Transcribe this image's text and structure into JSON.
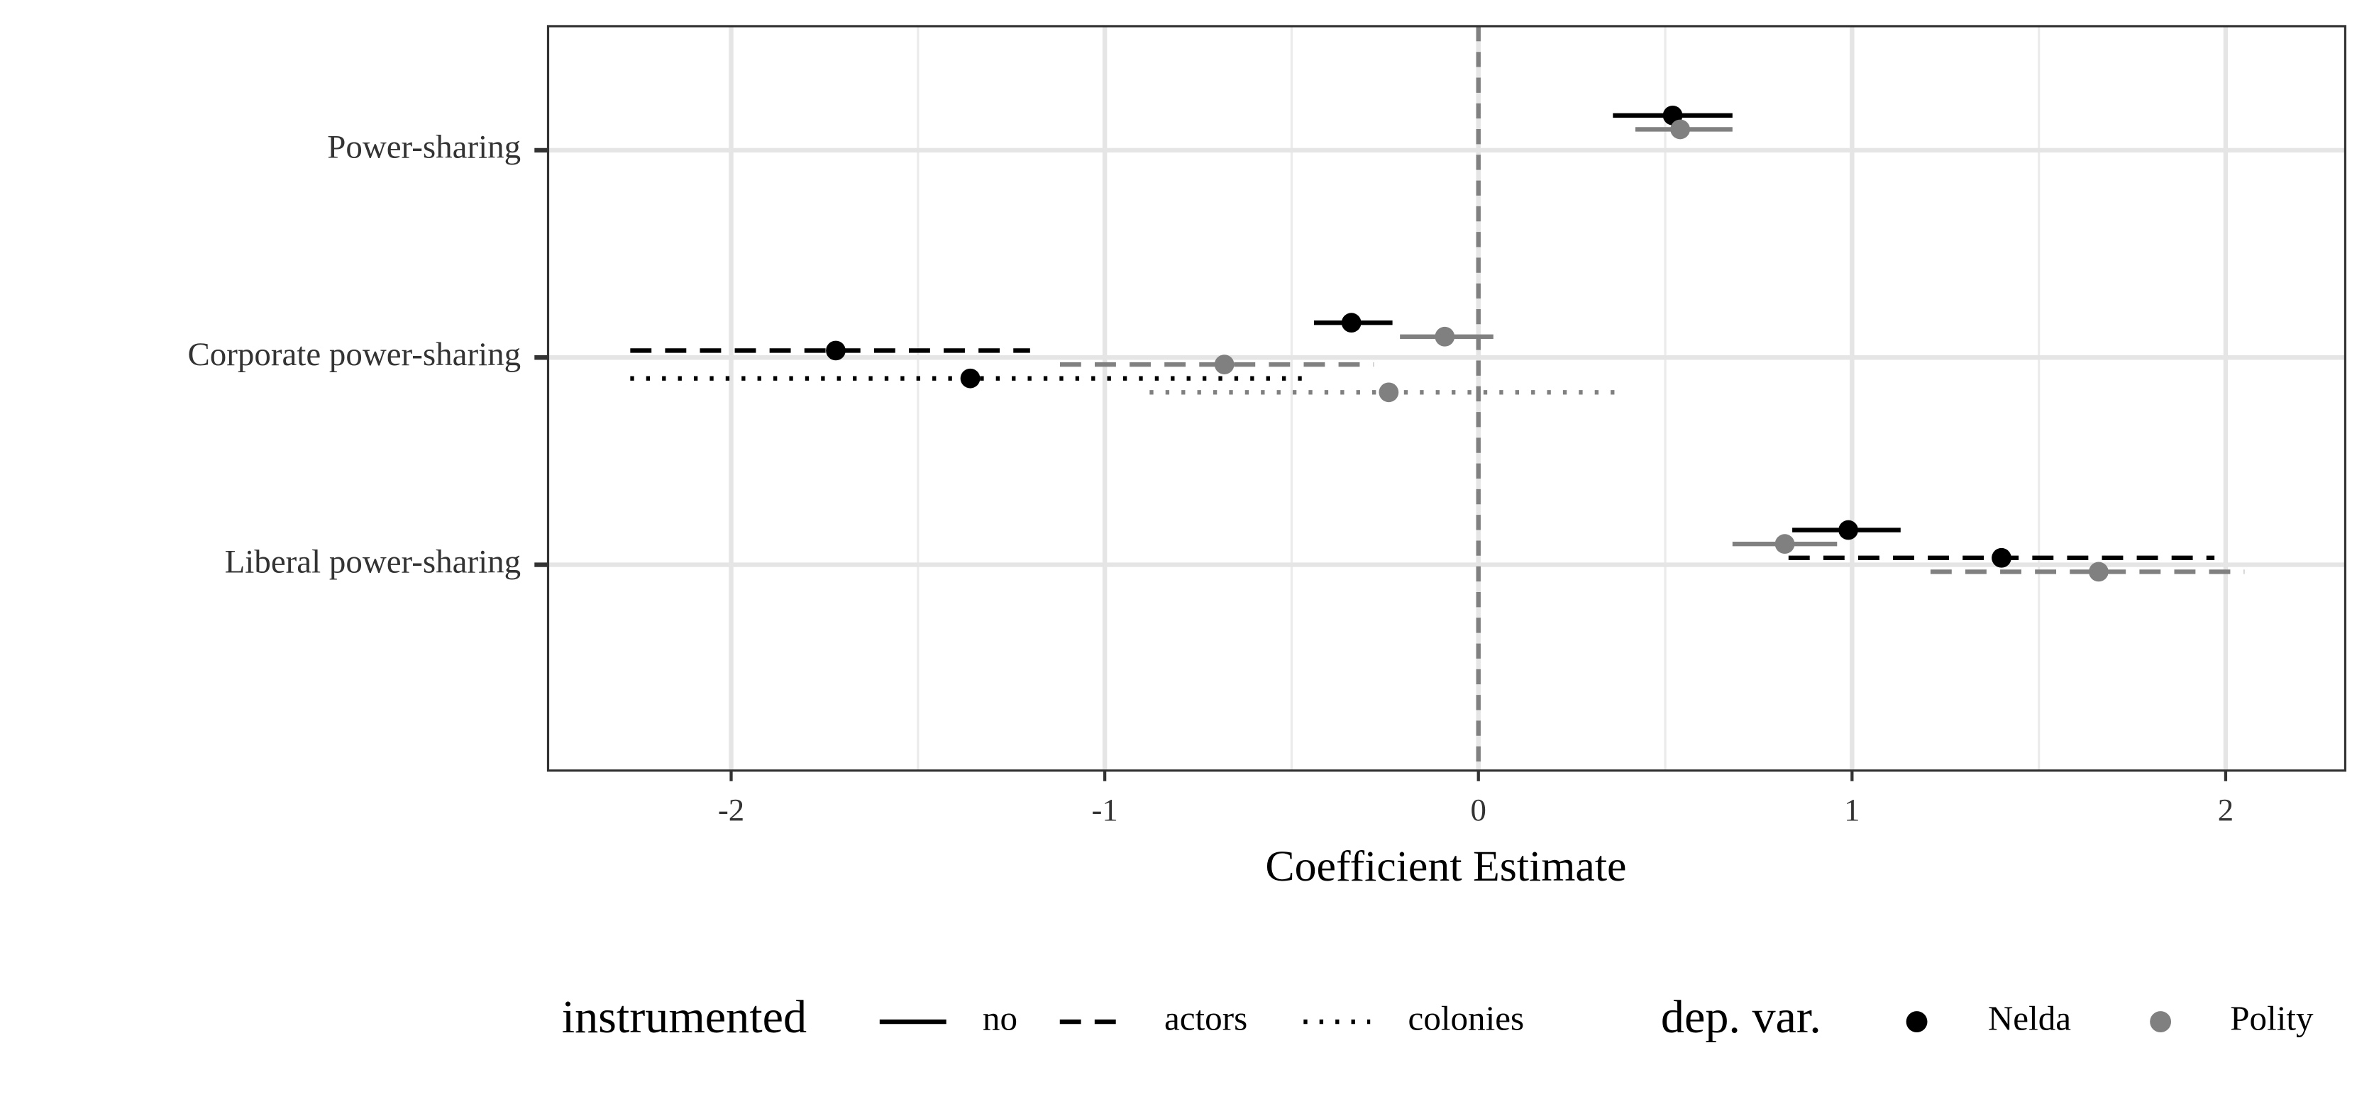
{
  "chart_data": {
    "type": "coefplot",
    "x_label": "Coefficient Estimate",
    "categories": [
      "Power-sharing",
      "Corporate power-sharing",
      "Liberal power-sharing"
    ],
    "xlim": [
      -2.49,
      2.32
    ],
    "xticks": [
      -2,
      -1,
      0,
      1,
      2
    ],
    "grid": true,
    "ref_line": 0,
    "series": [
      {
        "dash": "solid",
        "color": "#000000",
        "values": [
          0.52,
          -0.34,
          0.99
        ],
        "lower": [
          0.36,
          -0.44,
          0.84
        ],
        "upper": [
          0.68,
          -0.23,
          1.13
        ]
      },
      {
        "dash": "solid",
        "color": "#808080",
        "values": [
          0.54,
          -0.09,
          0.82
        ],
        "lower": [
          0.42,
          -0.21,
          0.68
        ],
        "upper": [
          0.68,
          0.04,
          0.96
        ]
      },
      {
        "dash": "dashed",
        "color": "#000000",
        "values": [
          null,
          -1.72,
          1.4
        ],
        "lower": [
          null,
          -2.27,
          0.83
        ],
        "upper": [
          null,
          -1.2,
          1.97
        ]
      },
      {
        "dash": "dashed",
        "color": "#808080",
        "values": [
          null,
          -0.68,
          1.66
        ],
        "lower": [
          null,
          -1.12,
          1.21
        ],
        "upper": [
          null,
          -0.28,
          2.05
        ]
      },
      {
        "dash": "dotted",
        "color": "#000000",
        "values": [
          null,
          -1.36,
          null
        ],
        "lower": [
          null,
          -2.27,
          null
        ],
        "upper": [
          null,
          -0.46,
          null
        ]
      },
      {
        "dash": "dotted",
        "color": "#808080",
        "values": [
          null,
          -0.24,
          null
        ],
        "lower": [
          null,
          -0.88,
          null
        ],
        "upper": [
          null,
          0.37,
          null
        ]
      }
    ],
    "legend": {
      "position": "bottom",
      "instrumented": {
        "title": "instrumented",
        "items": [
          {
            "label": "no",
            "dash": "solid"
          },
          {
            "label": "actors",
            "dash": "dashed"
          },
          {
            "label": "colonies",
            "dash": "dotted"
          }
        ]
      },
      "dep_var": {
        "title": "dep. var.",
        "items": [
          {
            "label": "Nelda",
            "color": "#000000"
          },
          {
            "label": "Polity",
            "color": "#808080"
          }
        ]
      }
    }
  }
}
